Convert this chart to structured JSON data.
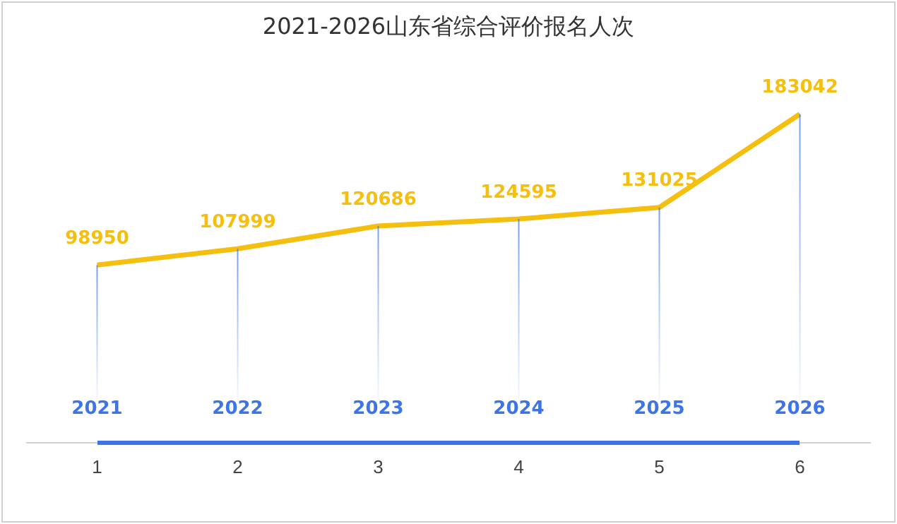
{
  "chart_data": {
    "type": "line",
    "title": "2021-2026山东省综合评价报名人次",
    "categories": [
      "1",
      "2",
      "3",
      "4",
      "5",
      "6"
    ],
    "series": [
      {
        "color": "#f5bf0f",
        "values": [
          98950,
          107999,
          120686,
          124595,
          131025,
          183042
        ]
      }
    ],
    "data_labels": true,
    "grid": "x",
    "legend": false,
    "marker": "none",
    "line_style": "solid",
    "tick_labels": "x",
    "annotations": [
      "2021",
      "2022",
      "2023",
      "2024",
      "2025",
      "2026"
    ]
  }
}
